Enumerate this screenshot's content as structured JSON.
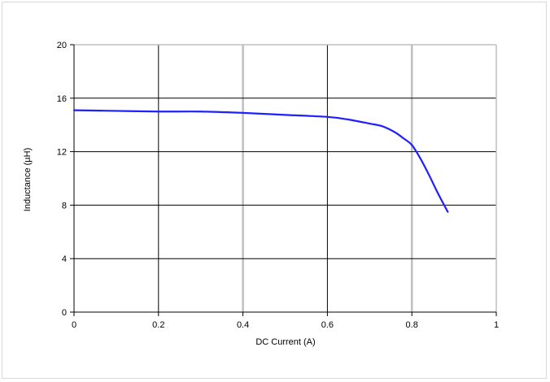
{
  "chart_data": {
    "type": "line",
    "title": "",
    "xlabel": "DC Current (A)",
    "ylabel": "Inductance (µH)",
    "xlim": [
      0,
      1
    ],
    "ylim": [
      0,
      20
    ],
    "xticks": [
      0,
      0.2,
      0.4,
      0.6,
      0.8,
      1
    ],
    "xtick_labels": [
      "0",
      "0.2",
      "0.4",
      "0.6",
      "0.8",
      "1"
    ],
    "yticks": [
      0,
      4,
      8,
      12,
      16,
      20
    ],
    "ytick_labels": [
      "0",
      "4",
      "8",
      "12",
      "16",
      "20"
    ],
    "grid": true,
    "series": [
      {
        "color": "#1f1fff",
        "x": [
          0,
          0.1,
          0.2,
          0.3,
          0.4,
          0.5,
          0.6,
          0.65,
          0.7,
          0.73,
          0.76,
          0.78,
          0.8,
          0.82,
          0.84,
          0.86,
          0.885
        ],
        "y": [
          15.1,
          15.05,
          15.0,
          15.0,
          14.9,
          14.75,
          14.6,
          14.4,
          14.1,
          13.9,
          13.45,
          13.0,
          12.5,
          11.5,
          10.3,
          9.0,
          7.5
        ]
      }
    ]
  },
  "colors": {
    "grid_major": "#bfbfbf",
    "grid_minor": "#000000",
    "axis": "#000000"
  }
}
